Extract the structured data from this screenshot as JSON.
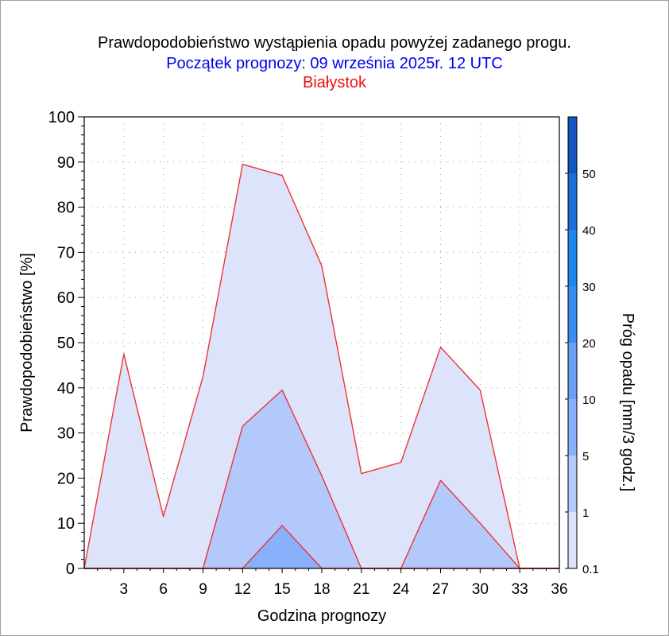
{
  "title": "Prawdopodobieństwo wystąpienia opadu powyżej zadanego progu.",
  "subtitle": "Początek prognozy: 09 września 2025r. 12 UTC",
  "location": "Białystok",
  "colors": {
    "title": "#000000",
    "subtitle": "#0000ee",
    "location": "#ee1111",
    "outline": "#ee3333",
    "levels": [
      "#dde3fb",
      "#b3c8fb",
      "#88b0fb",
      "#6a9ef5",
      "#3d8cf2",
      "#1c86ee",
      "#1a6fd8",
      "#1356c0",
      "#0b40a8",
      "#062f90"
    ]
  },
  "chart_data": {
    "type": "area",
    "title": "Prawdopodobieństwo wystąpienia opadu powyżej zadanego progu.",
    "subtitle": "Początek prognozy: 09 września 2025r. 12 UTC",
    "xlabel": "Godzina prognozy",
    "ylabel": "Prawdopodobieństwo [%]",
    "xlim": [
      0,
      36
    ],
    "ylim": [
      0,
      100
    ],
    "x": [
      0,
      3,
      6,
      9,
      12,
      15,
      18,
      21,
      24,
      27,
      30,
      33,
      36
    ],
    "xticks": [
      3,
      6,
      9,
      12,
      15,
      18,
      21,
      24,
      27,
      30,
      33,
      36
    ],
    "yticks": [
      0,
      10,
      20,
      30,
      40,
      50,
      60,
      70,
      80,
      90,
      100
    ],
    "grid": true,
    "series": [
      {
        "name": "0.1",
        "values": [
          0,
          47.5,
          11.5,
          42.5,
          89.5,
          87,
          67,
          21,
          23.5,
          49,
          39.5,
          0,
          0
        ]
      },
      {
        "name": "1",
        "values": [
          0,
          0,
          0,
          0,
          31.5,
          39.5,
          20.5,
          0,
          0,
          19.5,
          10,
          0,
          0
        ]
      },
      {
        "name": "5",
        "values": [
          0,
          0,
          0,
          0,
          0,
          9.5,
          0,
          0,
          0,
          0,
          0,
          0,
          0
        ]
      }
    ],
    "colorbar": {
      "label": "Próg opadu [mm/3 godz.]",
      "ticks": [
        "0.1",
        "1",
        "5",
        "10",
        "20",
        "30",
        "40",
        "50"
      ],
      "min": 0.1,
      "max": 60,
      "levels": [
        0.1,
        1,
        5,
        10,
        20,
        30,
        40,
        50
      ]
    }
  }
}
